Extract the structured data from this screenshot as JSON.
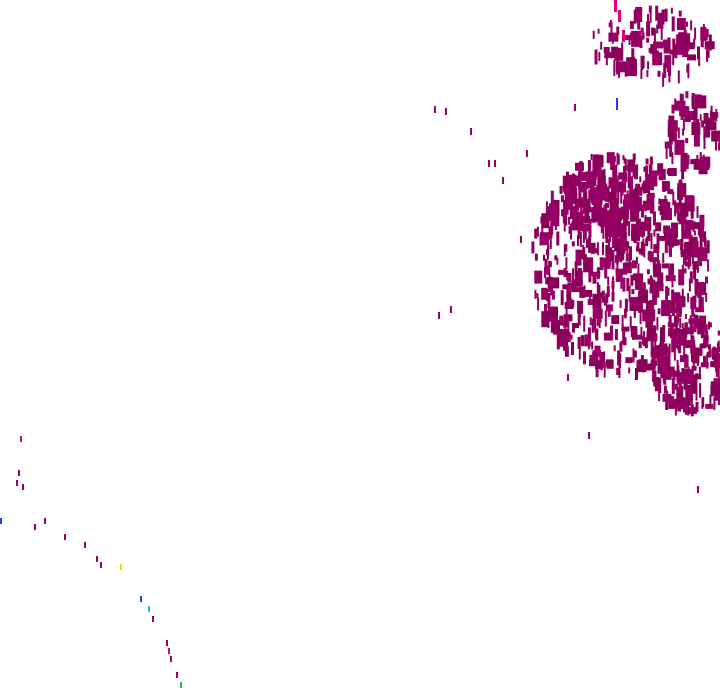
{
  "map": {
    "type": "radar-precipitation-overlay",
    "colors": {
      "background": "#ffffff",
      "echo_main": "#960064",
      "echo_dark": "#8a0058",
      "echo_bright": "#e0007a",
      "echo_blue": "#2040e0",
      "echo_cyan": "#00c8e0",
      "echo_yellow": "#e0e000",
      "echo_green": "#20c060"
    }
  }
}
